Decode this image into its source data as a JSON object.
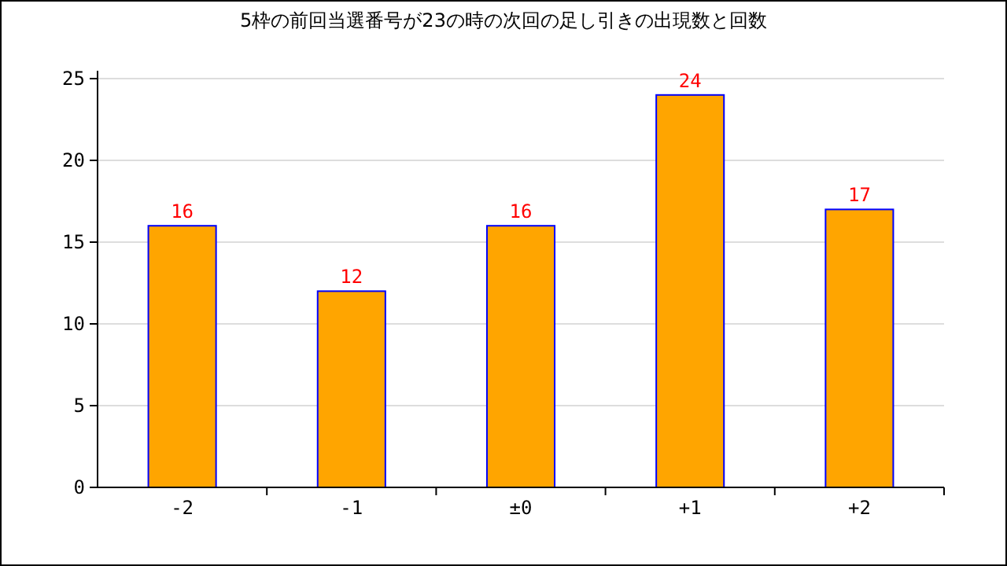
{
  "chart_data": {
    "type": "bar",
    "title": "5枠の前回当選番号が23の時の次回の足し引きの出現数と回数",
    "categories": [
      "-2",
      "-1",
      "±0",
      "+1",
      "+2"
    ],
    "values": [
      16,
      12,
      16,
      24,
      17
    ],
    "color": "#ffa500",
    "ylim": [
      0,
      25
    ],
    "yticks": [
      0,
      5,
      10,
      15,
      20,
      25
    ],
    "grid": "y",
    "data_labels": true
  }
}
